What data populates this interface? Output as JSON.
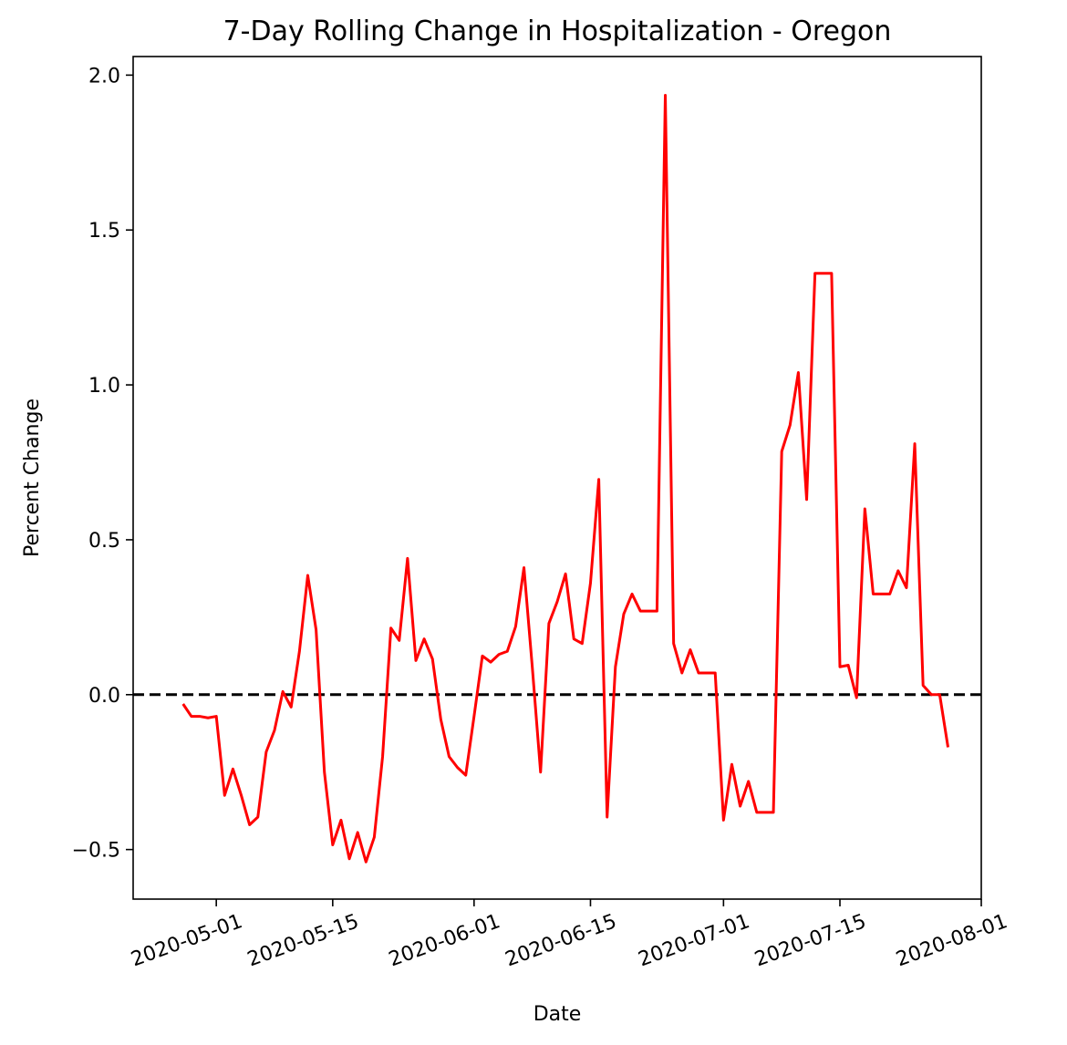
{
  "chart_data": {
    "type": "line",
    "title": "7-Day Rolling Change in Hospitalization - Oregon",
    "xlabel": "Date",
    "ylabel": "Percent Change",
    "x_range": [
      "2020-04-21",
      "2020-08-01"
    ],
    "ylim": [
      -0.66,
      2.06
    ],
    "y_ticks": [
      -0.5,
      0.0,
      0.5,
      1.0,
      1.5,
      2.0
    ],
    "y_tick_labels": [
      "−0.5",
      "0.0",
      "0.5",
      "1.0",
      "1.5",
      "2.0"
    ],
    "x_ticks": [
      "2020-05-01",
      "2020-05-15",
      "2020-06-01",
      "2020-06-15",
      "2020-07-01",
      "2020-07-15",
      "2020-08-01"
    ],
    "x_tick_labels": [
      "2020-05-01",
      "2020-05-15",
      "2020-06-01",
      "2020-06-15",
      "2020-07-01",
      "2020-07-15",
      "2020-08-01"
    ],
    "grid": false,
    "reference_line": {
      "y": 0.0,
      "style": "dashed",
      "color": "#000000"
    },
    "series": [
      {
        "color": "#ff0000",
        "x": [
          "2020-04-27",
          "2020-04-28",
          "2020-04-29",
          "2020-04-30",
          "2020-05-01",
          "2020-05-02",
          "2020-05-03",
          "2020-05-04",
          "2020-05-05",
          "2020-05-06",
          "2020-05-07",
          "2020-05-08",
          "2020-05-09",
          "2020-05-10",
          "2020-05-11",
          "2020-05-12",
          "2020-05-13",
          "2020-05-14",
          "2020-05-15",
          "2020-05-16",
          "2020-05-17",
          "2020-05-18",
          "2020-05-19",
          "2020-05-20",
          "2020-05-21",
          "2020-05-22",
          "2020-05-23",
          "2020-05-24",
          "2020-05-25",
          "2020-05-26",
          "2020-05-27",
          "2020-05-28",
          "2020-05-29",
          "2020-05-30",
          "2020-05-31",
          "2020-06-01",
          "2020-06-02",
          "2020-06-03",
          "2020-06-04",
          "2020-06-05",
          "2020-06-06",
          "2020-06-07",
          "2020-06-08",
          "2020-06-09",
          "2020-06-10",
          "2020-06-11",
          "2020-06-12",
          "2020-06-13",
          "2020-06-14",
          "2020-06-15",
          "2020-06-16",
          "2020-06-17",
          "2020-06-18",
          "2020-06-19",
          "2020-06-20",
          "2020-06-21",
          "2020-06-22",
          "2020-06-23",
          "2020-06-24",
          "2020-06-25",
          "2020-06-26",
          "2020-06-27",
          "2020-06-28",
          "2020-06-29",
          "2020-06-30",
          "2020-07-01",
          "2020-07-02",
          "2020-07-03",
          "2020-07-04",
          "2020-07-05",
          "2020-07-06",
          "2020-07-07",
          "2020-07-08",
          "2020-07-09",
          "2020-07-10",
          "2020-07-11",
          "2020-07-12",
          "2020-07-13",
          "2020-07-14",
          "2020-07-15",
          "2020-07-16",
          "2020-07-17",
          "2020-07-18",
          "2020-07-19",
          "2020-07-20",
          "2020-07-21",
          "2020-07-22",
          "2020-07-23",
          "2020-07-24",
          "2020-07-25",
          "2020-07-26",
          "2020-07-27",
          "2020-07-28"
        ],
        "values": [
          -0.03,
          -0.07,
          -0.07,
          -0.075,
          -0.07,
          -0.325,
          -0.24,
          -0.325,
          -0.42,
          -0.395,
          -0.185,
          -0.115,
          0.01,
          -0.04,
          0.14,
          0.385,
          0.21,
          -0.25,
          -0.485,
          -0.405,
          -0.53,
          -0.445,
          -0.54,
          -0.46,
          -0.2,
          0.215,
          0.175,
          0.44,
          0.11,
          0.18,
          0.115,
          -0.08,
          -0.2,
          -0.235,
          -0.26,
          -0.07,
          0.125,
          0.105,
          0.13,
          0.14,
          0.22,
          0.41,
          0.09,
          -0.25,
          0.23,
          0.3,
          0.39,
          0.18,
          0.165,
          0.36,
          0.695,
          -0.395,
          0.09,
          0.26,
          0.325,
          0.27,
          0.27,
          0.27,
          1.935,
          0.165,
          0.07,
          0.145,
          0.07,
          0.07,
          0.07,
          -0.405,
          -0.225,
          -0.36,
          -0.28,
          -0.38,
          -0.38,
          -0.38,
          0.785,
          0.87,
          1.04,
          0.63,
          1.36,
          1.36,
          1.36,
          0.09,
          0.095,
          -0.01,
          0.6,
          0.325,
          0.325,
          0.325,
          0.4,
          0.345,
          0.81,
          0.03,
          0.0,
          0.0,
          -0.17
        ]
      }
    ]
  }
}
